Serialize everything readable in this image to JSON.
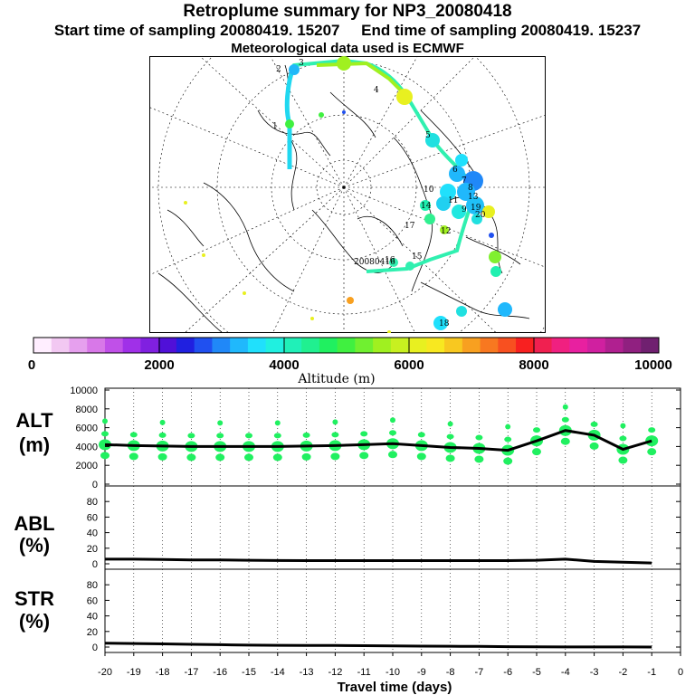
{
  "header": {
    "title": "Retroplume summary for NP3_20080418",
    "start_label": "Start time of sampling 20080419. 15207",
    "end_label": "End time of sampling 20080419. 15237",
    "met_label": "Meteorological data used is ECMWF"
  },
  "colorbar": {
    "ticks": [
      "0",
      "2000",
      "4000",
      "6000",
      "8000",
      "10000"
    ],
    "label": "Altitude (m)",
    "colors": [
      "#ffeeff",
      "#f2c8f2",
      "#e6a0ee",
      "#d878e8",
      "#c050e8",
      "#a030e8",
      "#8020e0",
      "#5010d8",
      "#2020e0",
      "#2050f0",
      "#2088f8",
      "#20b8fc",
      "#20e0fc",
      "#20f0e0",
      "#20f0b8",
      "#20f090",
      "#20f060",
      "#40f040",
      "#70f030",
      "#a0f020",
      "#c8f020",
      "#e8f020",
      "#f8e820",
      "#f8c820",
      "#f8a020",
      "#f87820",
      "#f85020",
      "#f82020",
      "#f02050",
      "#f02080",
      "#e820a0",
      "#d020a0",
      "#b02090",
      "#902080",
      "#702070"
    ]
  },
  "map": {
    "track_labels": [
      "1",
      "2",
      "3",
      "4",
      "5",
      "6",
      "7",
      "8",
      "9",
      "10",
      "11",
      "12",
      "13",
      "14",
      "15",
      "16",
      "17",
      "18",
      "19",
      "20"
    ],
    "place_label": "20080416"
  },
  "plots": {
    "alt_label": [
      "ALT",
      "(m)"
    ],
    "abl_label": [
      "ABL",
      "(%)"
    ],
    "str_label": [
      "STR",
      "(%)"
    ],
    "xlabel": "Travel time (days)"
  },
  "chart_data": [
    {
      "type": "line",
      "name": "ALT",
      "title": "",
      "xlabel": "Travel time (days)",
      "ylabel": "ALT (m)",
      "x": [
        -20,
        -19,
        -18,
        -17,
        -16,
        -15,
        -14,
        -13,
        -12,
        -11,
        -10,
        -9,
        -8,
        -7,
        -6,
        -5,
        -4,
        -3,
        -2,
        -1
      ],
      "values": [
        4200,
        4100,
        4050,
        4000,
        4000,
        4000,
        4000,
        4050,
        4100,
        4200,
        4300,
        4100,
        3900,
        3800,
        3600,
        4600,
        5700,
        5200,
        3700,
        4600
      ],
      "xlim": [
        -20,
        0
      ],
      "ylim": [
        0,
        10000
      ],
      "yticks": [
        "0",
        "2000",
        "4000",
        "6000",
        "8000",
        "10000"
      ],
      "xticks": [
        "-20",
        "-19",
        "-18",
        "-17",
        "-16",
        "-15",
        "-14",
        "-13",
        "-12",
        "-11",
        "-10",
        "-9",
        "-8",
        "-7",
        "-6",
        "-5",
        "-4",
        "-3",
        "-2",
        "-1",
        "0"
      ]
    },
    {
      "type": "line",
      "name": "ABL",
      "ylabel": "ABL (%)",
      "x": [
        -20,
        -19,
        -18,
        -17,
        -16,
        -15,
        -14,
        -13,
        -12,
        -11,
        -10,
        -9,
        -8,
        -7,
        -6,
        -5,
        -4,
        -3,
        -2,
        -1
      ],
      "values": [
        6,
        6,
        5.5,
        5,
        5,
        4.5,
        4.2,
        4,
        4,
        4,
        4,
        4,
        4,
        4,
        4,
        4.5,
        6,
        3,
        2,
        1
      ],
      "ylim": [
        0,
        100
      ],
      "yticks": [
        "0",
        "20",
        "40",
        "60",
        "80"
      ]
    },
    {
      "type": "line",
      "name": "STR",
      "ylabel": "STR (%)",
      "x": [
        -20,
        -19,
        -18,
        -17,
        -16,
        -15,
        -14,
        -13,
        -12,
        -11,
        -10,
        -9,
        -8,
        -7,
        -6,
        -5,
        -4,
        -3,
        -2,
        -1
      ],
      "values": [
        5,
        4.5,
        4,
        3.5,
        3,
        2.5,
        2.2,
        2,
        2,
        1.8,
        1.5,
        1.2,
        1,
        0.8,
        0.5,
        0.3,
        0.2,
        0.1,
        0.1,
        0
      ],
      "ylim": [
        0,
        100
      ],
      "yticks": [
        "0",
        "20",
        "40",
        "60",
        "80"
      ]
    }
  ]
}
